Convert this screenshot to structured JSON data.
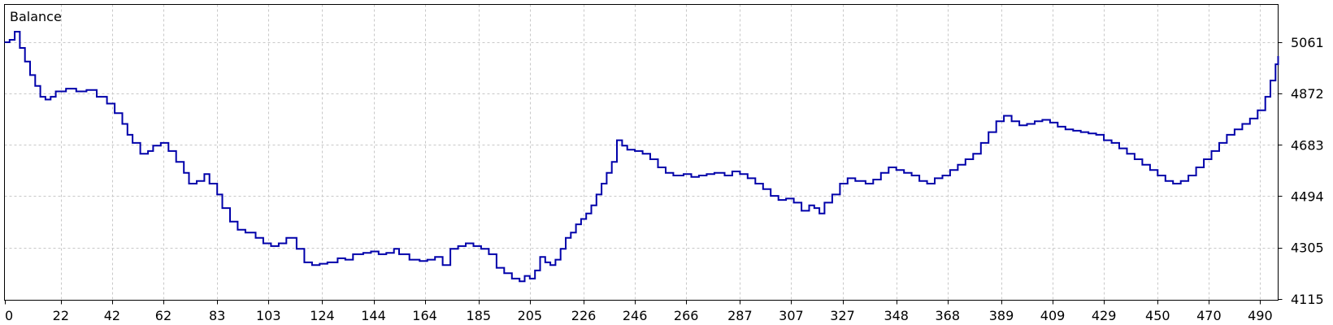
{
  "chart_data": {
    "type": "line",
    "title": "Balance",
    "xlabel": "",
    "ylabel": "",
    "x_ticks": [
      "0",
      "22",
      "42",
      "62",
      "83",
      "103",
      "124",
      "144",
      "164",
      "185",
      "205",
      "226",
      "246",
      "266",
      "287",
      "307",
      "327",
      "348",
      "368",
      "389",
      "409",
      "429",
      "450",
      "470",
      "490"
    ],
    "y_ticks": [
      "5061",
      "4872",
      "4683",
      "4494",
      "4305",
      "4115"
    ],
    "xlim": [
      0,
      497
    ],
    "ylim": [
      4115,
      5061
    ],
    "grid": true,
    "series": [
      {
        "color": "#0000aa",
        "points": [
          [
            0,
            5061
          ],
          [
            2,
            5070
          ],
          [
            4,
            5100
          ],
          [
            6,
            5040
          ],
          [
            8,
            4990
          ],
          [
            10,
            4940
          ],
          [
            12,
            4900
          ],
          [
            14,
            4860
          ],
          [
            16,
            4850
          ],
          [
            18,
            4860
          ],
          [
            20,
            4880
          ],
          [
            24,
            4890
          ],
          [
            28,
            4880
          ],
          [
            32,
            4885
          ],
          [
            36,
            4860
          ],
          [
            40,
            4835
          ],
          [
            43,
            4800
          ],
          [
            46,
            4760
          ],
          [
            48,
            4720
          ],
          [
            50,
            4690
          ],
          [
            53,
            4650
          ],
          [
            56,
            4660
          ],
          [
            58,
            4680
          ],
          [
            61,
            4690
          ],
          [
            64,
            4660
          ],
          [
            67,
            4620
          ],
          [
            70,
            4580
          ],
          [
            72,
            4540
          ],
          [
            75,
            4550
          ],
          [
            78,
            4575
          ],
          [
            80,
            4540
          ],
          [
            83,
            4500
          ],
          [
            85,
            4450
          ],
          [
            88,
            4400
          ],
          [
            91,
            4370
          ],
          [
            94,
            4360
          ],
          [
            98,
            4340
          ],
          [
            101,
            4320
          ],
          [
            104,
            4310
          ],
          [
            107,
            4320
          ],
          [
            110,
            4340
          ],
          [
            114,
            4300
          ],
          [
            117,
            4250
          ],
          [
            120,
            4240
          ],
          [
            123,
            4245
          ],
          [
            126,
            4250
          ],
          [
            130,
            4265
          ],
          [
            133,
            4260
          ],
          [
            136,
            4280
          ],
          [
            140,
            4285
          ],
          [
            143,
            4290
          ],
          [
            146,
            4280
          ],
          [
            149,
            4285
          ],
          [
            152,
            4300
          ],
          [
            154,
            4280
          ],
          [
            158,
            4260
          ],
          [
            162,
            4255
          ],
          [
            165,
            4260
          ],
          [
            168,
            4270
          ],
          [
            171,
            4240
          ],
          [
            174,
            4300
          ],
          [
            177,
            4310
          ],
          [
            180,
            4320
          ],
          [
            183,
            4310
          ],
          [
            186,
            4300
          ],
          [
            189,
            4280
          ],
          [
            192,
            4230
          ],
          [
            195,
            4210
          ],
          [
            198,
            4190
          ],
          [
            201,
            4180
          ],
          [
            203,
            4200
          ],
          [
            205,
            4190
          ],
          [
            207,
            4220
          ],
          [
            209,
            4270
          ],
          [
            211,
            4250
          ],
          [
            213,
            4240
          ],
          [
            215,
            4260
          ],
          [
            217,
            4300
          ],
          [
            219,
            4340
          ],
          [
            221,
            4360
          ],
          [
            223,
            4390
          ],
          [
            225,
            4410
          ],
          [
            227,
            4430
          ],
          [
            229,
            4460
          ],
          [
            231,
            4500
          ],
          [
            233,
            4540
          ],
          [
            235,
            4580
          ],
          [
            237,
            4620
          ],
          [
            239,
            4700
          ],
          [
            241,
            4680
          ],
          [
            243,
            4665
          ],
          [
            246,
            4660
          ],
          [
            249,
            4650
          ],
          [
            252,
            4630
          ],
          [
            255,
            4600
          ],
          [
            258,
            4580
          ],
          [
            261,
            4570
          ],
          [
            265,
            4575
          ],
          [
            268,
            4565
          ],
          [
            271,
            4570
          ],
          [
            274,
            4575
          ],
          [
            277,
            4580
          ],
          [
            281,
            4570
          ],
          [
            284,
            4585
          ],
          [
            287,
            4575
          ],
          [
            290,
            4560
          ],
          [
            293,
            4540
          ],
          [
            296,
            4520
          ],
          [
            299,
            4495
          ],
          [
            302,
            4480
          ],
          [
            305,
            4485
          ],
          [
            308,
            4470
          ],
          [
            311,
            4440
          ],
          [
            314,
            4460
          ],
          [
            316,
            4450
          ],
          [
            318,
            4430
          ],
          [
            320,
            4470
          ],
          [
            323,
            4500
          ],
          [
            326,
            4540
          ],
          [
            329,
            4560
          ],
          [
            332,
            4550
          ],
          [
            336,
            4540
          ],
          [
            339,
            4555
          ],
          [
            342,
            4580
          ],
          [
            345,
            4600
          ],
          [
            348,
            4590
          ],
          [
            351,
            4580
          ],
          [
            354,
            4570
          ],
          [
            357,
            4550
          ],
          [
            360,
            4540
          ],
          [
            363,
            4560
          ],
          [
            366,
            4570
          ],
          [
            369,
            4590
          ],
          [
            372,
            4610
          ],
          [
            375,
            4630
          ],
          [
            378,
            4650
          ],
          [
            381,
            4690
          ],
          [
            384,
            4730
          ],
          [
            387,
            4770
          ],
          [
            390,
            4790
          ],
          [
            393,
            4770
          ],
          [
            396,
            4755
          ],
          [
            399,
            4760
          ],
          [
            402,
            4770
          ],
          [
            405,
            4775
          ],
          [
            408,
            4765
          ],
          [
            411,
            4750
          ],
          [
            414,
            4740
          ],
          [
            417,
            4735
          ],
          [
            420,
            4730
          ],
          [
            423,
            4725
          ],
          [
            426,
            4720
          ],
          [
            429,
            4700
          ],
          [
            432,
            4690
          ],
          [
            435,
            4670
          ],
          [
            438,
            4650
          ],
          [
            441,
            4630
          ],
          [
            444,
            4610
          ],
          [
            447,
            4590
          ],
          [
            450,
            4570
          ],
          [
            453,
            4550
          ],
          [
            456,
            4540
          ],
          [
            459,
            4550
          ],
          [
            462,
            4570
          ],
          [
            465,
            4600
          ],
          [
            468,
            4630
          ],
          [
            471,
            4660
          ],
          [
            474,
            4690
          ],
          [
            477,
            4720
          ],
          [
            480,
            4740
          ],
          [
            483,
            4760
          ],
          [
            486,
            4780
          ],
          [
            489,
            4810
          ],
          [
            492,
            4860
          ],
          [
            494,
            4920
          ],
          [
            496,
            4980
          ],
          [
            497,
            5010
          ]
        ]
      }
    ]
  }
}
